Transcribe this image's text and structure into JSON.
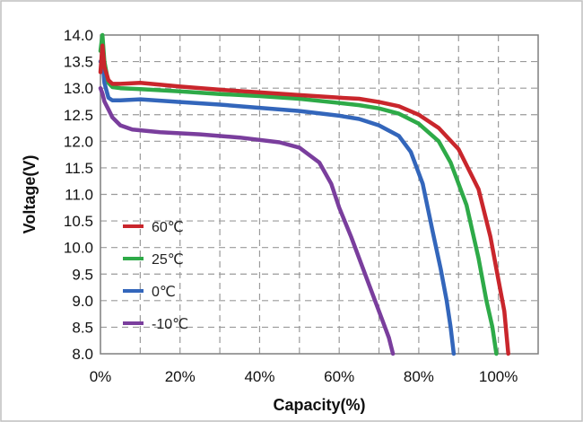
{
  "chart_data": {
    "type": "line",
    "title": "",
    "xlabel": "Capacity(%)",
    "ylabel": "Voltage(V)",
    "xlim": [
      0,
      110
    ],
    "ylim": [
      8.0,
      14.0
    ],
    "x_ticks": [
      0,
      20,
      40,
      60,
      80,
      100
    ],
    "x_tick_labels": [
      "0%",
      "20%",
      "40%",
      "60%",
      "80%",
      "100%"
    ],
    "y_ticks": [
      8.0,
      8.5,
      9.0,
      9.5,
      10.0,
      10.5,
      11.0,
      11.5,
      12.0,
      12.5,
      13.0,
      13.5,
      14.0
    ],
    "y_tick_labels": [
      "8.0",
      "8.5",
      "9.0",
      "9.5",
      "10.0",
      "10.5",
      "11.0",
      "11.5",
      "12.0",
      "12.5",
      "13.0",
      "13.5",
      "14.0"
    ],
    "grid": true,
    "legend_position": "left-middle",
    "series": [
      {
        "name": "60℃",
        "color": "#c9262c",
        "points": [
          [
            0,
            13.3
          ],
          [
            0.5,
            13.8
          ],
          [
            1,
            13.4
          ],
          [
            2,
            13.15
          ],
          [
            3,
            13.08
          ],
          [
            5,
            13.08
          ],
          [
            10,
            13.1
          ],
          [
            20,
            13.03
          ],
          [
            30,
            12.97
          ],
          [
            40,
            12.92
          ],
          [
            50,
            12.87
          ],
          [
            60,
            12.82
          ],
          [
            65,
            12.8
          ],
          [
            70,
            12.74
          ],
          [
            75,
            12.66
          ],
          [
            80,
            12.5
          ],
          [
            85,
            12.25
          ],
          [
            90,
            11.85
          ],
          [
            95,
            11.1
          ],
          [
            98,
            10.2
          ],
          [
            100,
            9.4
          ],
          [
            101.5,
            8.8
          ],
          [
            102.5,
            8.0
          ]
        ]
      },
      {
        "name": "25℃",
        "color": "#2eaa48",
        "points": [
          [
            0,
            13.7
          ],
          [
            0.5,
            14.0
          ],
          [
            1,
            13.5
          ],
          [
            2,
            13.1
          ],
          [
            3,
            13.02
          ],
          [
            5,
            13.0
          ],
          [
            10,
            12.98
          ],
          [
            20,
            12.94
          ],
          [
            30,
            12.89
          ],
          [
            40,
            12.85
          ],
          [
            50,
            12.8
          ],
          [
            60,
            12.72
          ],
          [
            65,
            12.68
          ],
          [
            70,
            12.62
          ],
          [
            75,
            12.52
          ],
          [
            80,
            12.33
          ],
          [
            85,
            12.0
          ],
          [
            88,
            11.6
          ],
          [
            92,
            10.8
          ],
          [
            95,
            9.8
          ],
          [
            97,
            9.0
          ],
          [
            98.5,
            8.5
          ],
          [
            99.5,
            8.0
          ]
        ]
      },
      {
        "name": "0℃",
        "color": "#3366bb",
        "points": [
          [
            0,
            13.5
          ],
          [
            0.5,
            13.55
          ],
          [
            1,
            13.1
          ],
          [
            2,
            12.82
          ],
          [
            3,
            12.77
          ],
          [
            5,
            12.77
          ],
          [
            10,
            12.79
          ],
          [
            20,
            12.74
          ],
          [
            30,
            12.69
          ],
          [
            40,
            12.63
          ],
          [
            50,
            12.57
          ],
          [
            60,
            12.48
          ],
          [
            65,
            12.42
          ],
          [
            70,
            12.3
          ],
          [
            75,
            12.1
          ],
          [
            78,
            11.8
          ],
          [
            81,
            11.2
          ],
          [
            83.5,
            10.3
          ],
          [
            85.5,
            9.6
          ],
          [
            87,
            9.0
          ],
          [
            88,
            8.5
          ],
          [
            88.8,
            8.0
          ]
        ]
      },
      {
        "name": "-10℃",
        "color": "#7a3e9d",
        "points": [
          [
            0,
            13.0
          ],
          [
            0.5,
            12.9
          ],
          [
            1,
            12.75
          ],
          [
            2,
            12.6
          ],
          [
            3,
            12.45
          ],
          [
            5,
            12.3
          ],
          [
            8,
            12.22
          ],
          [
            15,
            12.17
          ],
          [
            25,
            12.13
          ],
          [
            35,
            12.07
          ],
          [
            45,
            11.98
          ],
          [
            50,
            11.88
          ],
          [
            55,
            11.6
          ],
          [
            58,
            11.2
          ],
          [
            60,
            10.75
          ],
          [
            63,
            10.2
          ],
          [
            66,
            9.6
          ],
          [
            69,
            9.0
          ],
          [
            71,
            8.6
          ],
          [
            72.5,
            8.3
          ],
          [
            73.5,
            8.0
          ]
        ]
      }
    ]
  }
}
